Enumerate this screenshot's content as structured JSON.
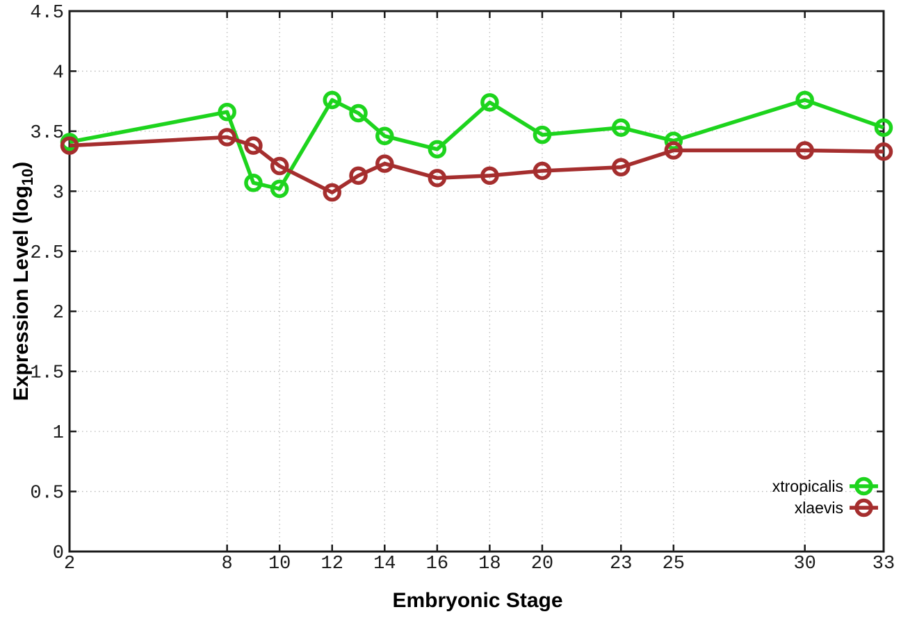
{
  "chart_data": {
    "type": "line",
    "title": "",
    "xlabel": "Embryonic Stage",
    "ylabel": "Expression Level (log10)",
    "ylabel_parts": {
      "main": "Expression Level (log",
      "sub": "10",
      "close": ")"
    },
    "x": [
      2,
      8,
      9,
      10,
      12,
      13,
      14,
      16,
      18,
      20,
      23,
      25,
      30,
      33
    ],
    "series": [
      {
        "name": "xtropicalis",
        "color": "#1dd41d",
        "values": [
          3.41,
          3.66,
          3.07,
          3.02,
          3.76,
          3.65,
          3.46,
          3.35,
          3.74,
          3.47,
          3.53,
          3.42,
          3.76,
          3.53
        ]
      },
      {
        "name": "xlaevis",
        "color": "#a52e2e",
        "values": [
          3.38,
          3.45,
          3.38,
          3.21,
          2.99,
          3.13,
          3.23,
          3.11,
          3.13,
          3.17,
          3.2,
          3.34,
          3.34,
          3.33
        ]
      }
    ],
    "xlim": [
      2,
      33
    ],
    "ylim": [
      0,
      4.5
    ],
    "xtick_values": [
      2,
      8,
      10,
      12,
      14,
      16,
      18,
      20,
      23,
      25,
      30,
      33
    ],
    "xtick_labels": [
      "2",
      "8",
      "10",
      "12",
      "14",
      "16",
      "18",
      "20",
      "23",
      "25",
      "30",
      "33"
    ],
    "ytick_values": [
      0,
      0.5,
      1,
      1.5,
      2,
      2.5,
      3,
      3.5,
      4,
      4.5
    ],
    "ytick_labels": [
      "0",
      "0.5",
      "1",
      "1.5",
      "2",
      "2.5",
      "3",
      "3.5",
      "4",
      "4.5"
    ],
    "grid": true,
    "legend_position": "bottom-right",
    "marker": "open-circle",
    "colors": {
      "background": "#ffffff",
      "frame": "#1a1a1a",
      "grid": "#b8b8b8",
      "text": "#1a1a1a"
    }
  }
}
